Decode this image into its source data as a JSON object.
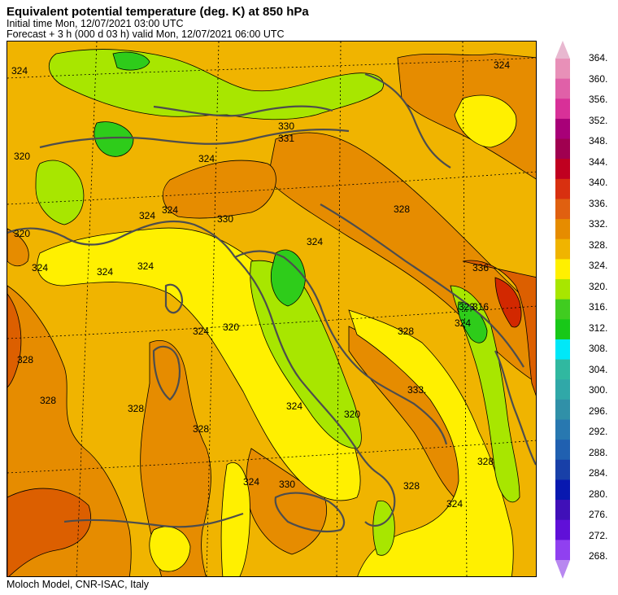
{
  "header": {
    "title": "Equivalent potential temperature (deg. K) at 850 hPa",
    "initial_time": "Initial time  Mon, 12/07/2021  03:00 UTC",
    "forecast": "Forecast  +   3 h  (000 d 03 h)  valid Mon, 12/07/2021 06:00 UTC"
  },
  "footer": {
    "credit": "Moloch Model, CNR-ISAC, Italy"
  },
  "map": {
    "contour_labels": [
      "324",
      "324",
      "330",
      "331",
      "324",
      "324",
      "324",
      "320",
      "320",
      "324",
      "328",
      "330",
      "328",
      "328",
      "328",
      "328",
      "324",
      "324",
      "320",
      "324",
      "324",
      "328",
      "333.",
      "324",
      "324",
      "328",
      "324",
      "323",
      "324",
      "316",
      "330",
      "328",
      "320",
      "336"
    ],
    "colors": {
      "c316": "#a8e600",
      "c312": "#2ecc1a",
      "c320": "#fff000",
      "c324": "#f0b400",
      "c328": "#e68c00",
      "c332": "#dc5f00",
      "c336": "#d22800",
      "coast": "#4d4d4d"
    }
  },
  "colorbar": {
    "labels": [
      "364.",
      "360.",
      "356.",
      "352.",
      "348.",
      "344.",
      "340.",
      "336.",
      "332.",
      "328.",
      "324.",
      "320.",
      "316.",
      "312.",
      "308.",
      "304.",
      "300.",
      "296.",
      "292.",
      "288.",
      "284.",
      "280.",
      "276.",
      "272.",
      "268."
    ],
    "colors": [
      "#e890b8",
      "#e060a8",
      "#d83098",
      "#a80078",
      "#a00050",
      "#c00020",
      "#d83010",
      "#e06010",
      "#e68c00",
      "#f0b400",
      "#fff000",
      "#a8e600",
      "#40cc20",
      "#18c818",
      "#00e8f8",
      "#30b8a0",
      "#30a8a8",
      "#3090a8",
      "#2878b0",
      "#2060b0",
      "#1840a8",
      "#0818b0",
      "#4010b8",
      "#6010d8",
      "#9040f0"
    ],
    "top_arrow_color": "#e8b8d0",
    "bottom_arrow_color": "#b888f0"
  }
}
